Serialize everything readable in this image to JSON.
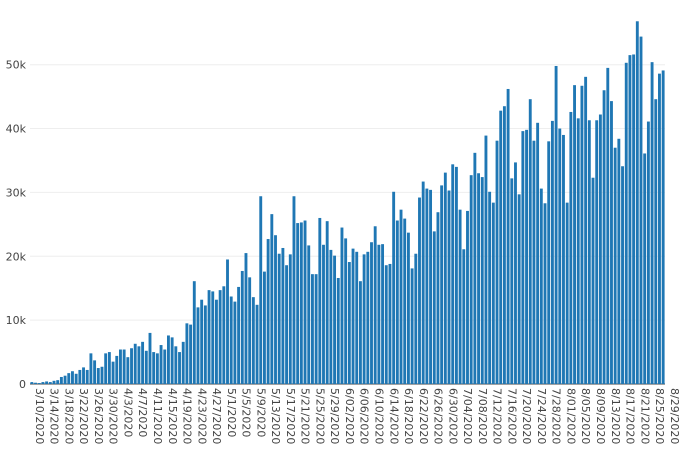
{
  "chart_data": {
    "type": "bar",
    "title": "",
    "xlabel": "",
    "ylabel": "",
    "bar_color": "#1f77b4",
    "grid": true,
    "legend": "none",
    "ylim": [
      0,
      57000
    ],
    "yticks": [
      0,
      10000,
      20000,
      30000,
      40000,
      50000
    ],
    "ytick_labels": [
      "0",
      "10k",
      "20k",
      "30k",
      "40k",
      "50k"
    ],
    "x_start": "2020-03-10",
    "xtick_labels": [
      "3/10/2020",
      "3/14/2020",
      "3/18/2020",
      "3/22/2020",
      "3/26/2020",
      "3/30/2020",
      "4/3/2020",
      "4/7/2020",
      "4/11/2020",
      "4/15/2020",
      "4/19/2020",
      "4/23/2020",
      "4/27/2020",
      "5/1/2020",
      "5/5/2020",
      "5/9/2020",
      "5/13/2020",
      "5/17/2020",
      "5/21/2020",
      "5/25/2020",
      "5/29/2020",
      "6/02/2020",
      "6/06/2020",
      "6/10/2020",
      "6/14/2020",
      "6/18/2020",
      "6/22/2020",
      "6/26/2020",
      "6/30/2020",
      "7/04/2020",
      "7/08/2020",
      "7/12/2020",
      "7/16/2020",
      "7/20/2020",
      "7/24/2020",
      "7/28/2020",
      "8/01/2020",
      "8/05/2020",
      "8/09/2020",
      "8/13/2020",
      "8/17/2020",
      "8/21/2020",
      "8/25/2020",
      "8/29/2020"
    ],
    "values": [
      300,
      200,
      150,
      300,
      400,
      300,
      500,
      600,
      1100,
      1300,
      1700,
      2000,
      1600,
      2200,
      2600,
      2200,
      4800,
      3700,
      2500,
      2700,
      4800,
      5000,
      3500,
      4400,
      5400,
      5400,
      4200,
      5600,
      6300,
      5900,
      6600,
      5200,
      8000,
      5000,
      4800,
      6100,
      5400,
      7600,
      7300,
      5900,
      5000,
      6600,
      9500,
      9300,
      16100,
      12000,
      13200,
      12300,
      14700,
      14500,
      13200,
      14700,
      15300,
      19500,
      13700,
      12900,
      15200,
      17700,
      20500,
      16700,
      13600,
      12400,
      29400,
      17600,
      22700,
      26600,
      23300,
      20400,
      21300,
      18600,
      20300,
      29400,
      25200,
      25300,
      25600,
      21700,
      17200,
      17200,
      26000,
      21800,
      25500,
      21000,
      20100,
      16600,
      24500,
      22800,
      19100,
      21200,
      20700,
      16100,
      20300,
      20700,
      22200,
      24700,
      21800,
      21900,
      18600,
      18800,
      30100,
      25600,
      27300,
      25900,
      23700,
      18100,
      20400,
      29200,
      31700,
      30600,
      30400,
      23900,
      26900,
      31100,
      33100,
      30300,
      34400,
      34000,
      27300,
      21100,
      27100,
      32700,
      36200,
      33000,
      32400,
      38900,
      30100,
      28400,
      38100,
      42800,
      43500,
      46200,
      32200,
      34700,
      29700,
      39600,
      39800,
      44600,
      38100,
      40900,
      30600,
      28300,
      38000,
      41200,
      49800,
      40000,
      39000,
      28400,
      42600,
      46800,
      41600,
      46700,
      48100,
      41300,
      32300,
      41300,
      42200,
      46000,
      49500,
      44300,
      37000,
      38400,
      34100,
      50300,
      51500,
      51600,
      56800,
      54400,
      36100,
      41100,
      50400,
      44600,
      48600,
      49100
    ]
  }
}
